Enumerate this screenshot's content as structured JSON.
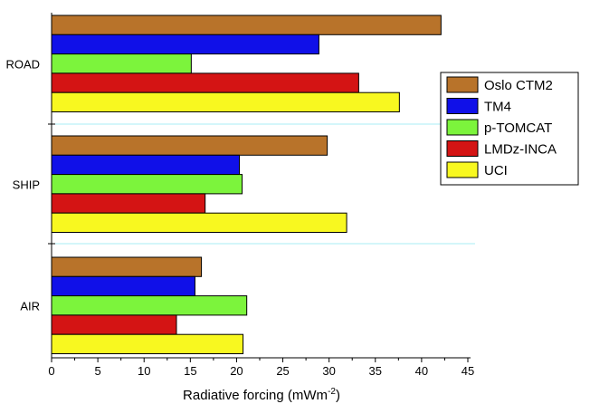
{
  "chart_data": {
    "type": "bar",
    "orientation": "horizontal",
    "categories": [
      "ROAD",
      "SHIP",
      "AIR"
    ],
    "series": [
      {
        "name": "Oslo CTM2",
        "color": "#b8732a",
        "values": [
          42.1,
          29.8,
          16.2
        ]
      },
      {
        "name": "TM4",
        "color": "#1010e8",
        "values": [
          28.9,
          20.3,
          15.5
        ]
      },
      {
        "name": "p-TOMCAT",
        "color": "#7cf43c",
        "values": [
          15.1,
          20.6,
          21.1
        ]
      },
      {
        "name": "LMDz-INCA",
        "color": "#d41414",
        "values": [
          33.2,
          16.6,
          13.5
        ]
      },
      {
        "name": "UCI",
        "color": "#f8f820",
        "values": [
          37.6,
          31.9,
          20.7
        ]
      }
    ],
    "xlabel": "Radiative forcing (mWm",
    "xlabel_superscript": "-2",
    "xlabel_close": ")",
    "xlim": [
      0,
      45
    ],
    "xticks": [
      0,
      5,
      10,
      15,
      20,
      25,
      30,
      35,
      40,
      45
    ],
    "legend_position": "right"
  }
}
